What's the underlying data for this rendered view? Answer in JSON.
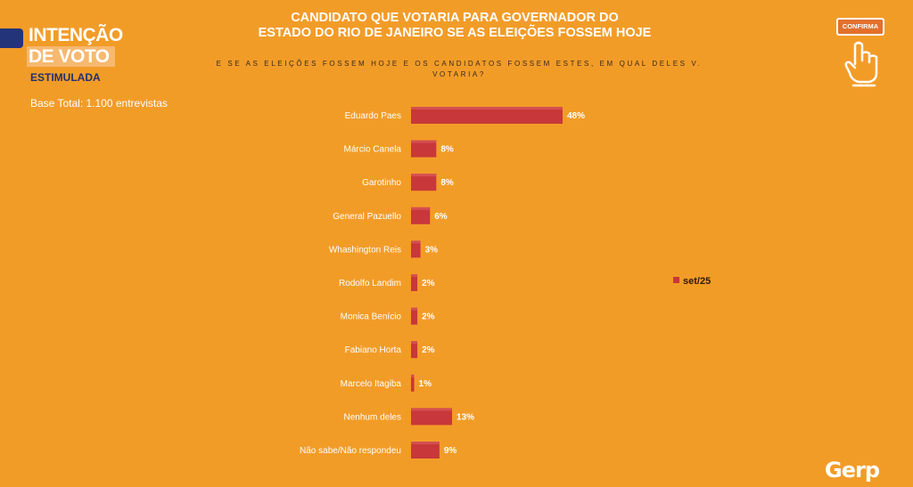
{
  "header": {
    "title_line1": "INTENÇÃO",
    "title_line2": "DE VOTO",
    "badge": "ESTIMULADA",
    "base": "Base Total: 1.100 entrevistas"
  },
  "confirma_label": "CONFIRMA",
  "brand": "Gerp",
  "colors": {
    "background": "#f29c28",
    "bar": "#c8373a",
    "accent_blue": "#23347a"
  },
  "chart_data": {
    "type": "bar",
    "orientation": "horizontal",
    "title_line1": "CANDIDATO QUE VOTARIA PARA GOVERNADOR DO",
    "title_line2": "ESTADO DO RIO DE JANEIRO SE AS ELEIÇÕES FOSSEM HOJE",
    "question_line1": "E SE AS ELEIÇÕES FOSSEM HOJE E OS CANDIDATOS FOSSEM ESTES, EM QUAL DELES V.",
    "question_line2": "VOTARIA?",
    "categories": [
      "Eduardo Paes",
      "Márcio Canela",
      "Garotinho",
      "General Pazuello",
      "Whashington Reis",
      "Rodolfo Landim",
      "Monica Benício",
      "Fabiano Horta",
      "Marcelo Itagiba",
      "Nenhum deles",
      "Não sabe/Não respondeu"
    ],
    "series": [
      {
        "name": "set/25",
        "values": [
          48,
          8,
          8,
          6,
          3,
          2,
          2,
          2,
          1,
          13,
          9
        ]
      }
    ],
    "value_labels": [
      "48%",
      "8%",
      "8%",
      "6%",
      "3%",
      "2%",
      "2%",
      "2%",
      "1%",
      "13%",
      "9%"
    ],
    "unit": "%",
    "xlim": [
      0,
      48
    ],
    "legend_position": "right",
    "grid": false
  }
}
